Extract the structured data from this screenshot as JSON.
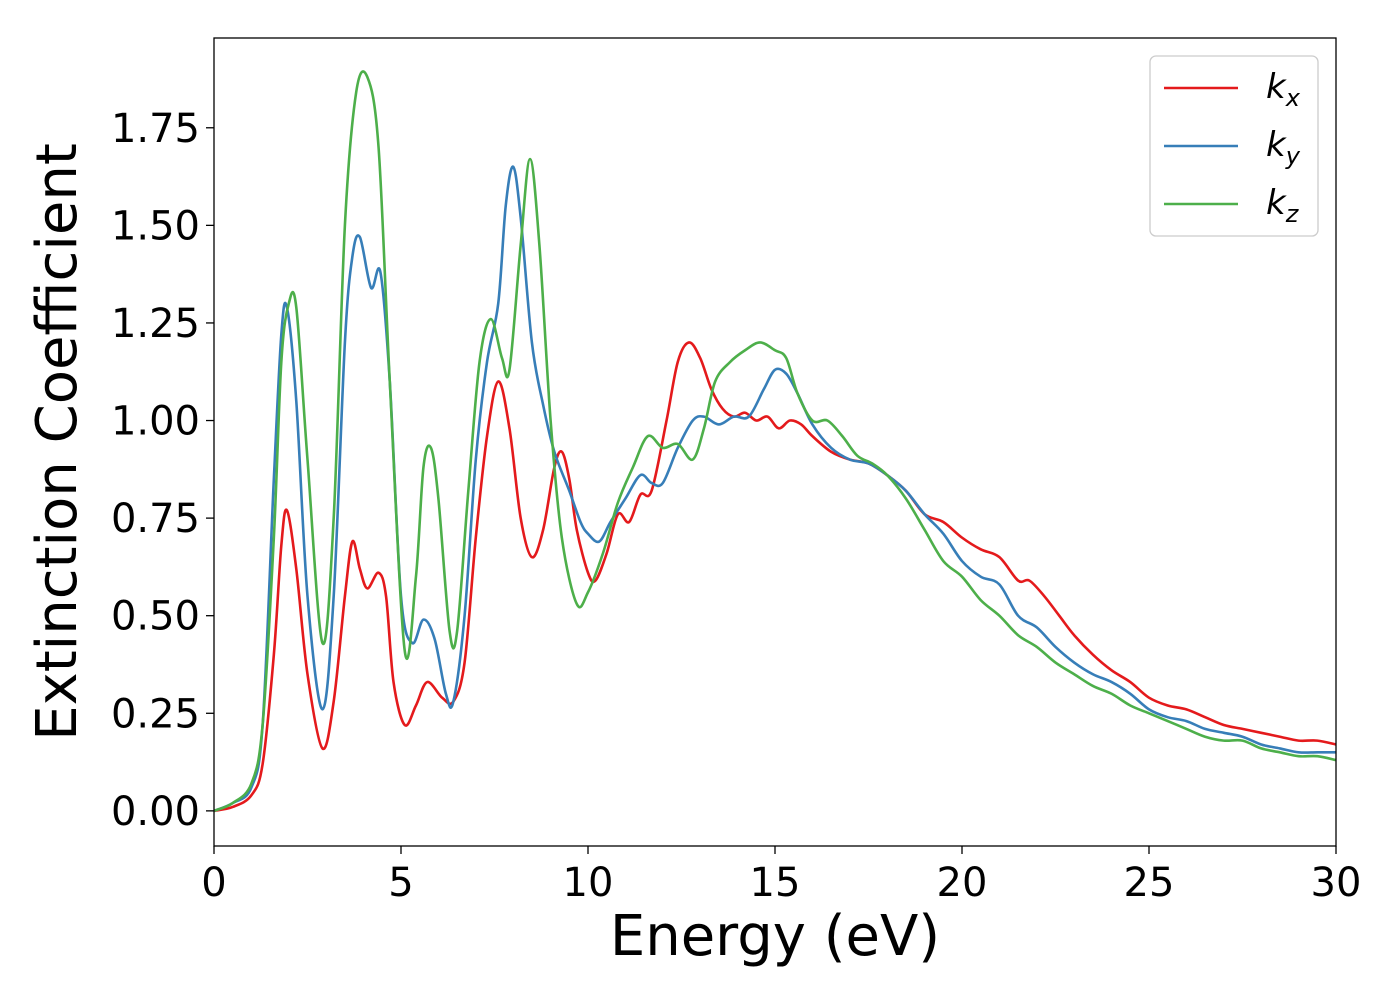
{
  "chart_data": {
    "type": "line",
    "title": "",
    "xlabel": "Energy (eV)",
    "ylabel": "Extinction Coefficient",
    "xlim": [
      0,
      30
    ],
    "ylim": [
      -0.09,
      1.98
    ],
    "xticks": [
      0,
      5,
      10,
      15,
      20,
      25,
      30
    ],
    "xtick_labels": [
      "0",
      "5",
      "10",
      "15",
      "20",
      "25",
      "30"
    ],
    "yticks": [
      0.0,
      0.25,
      0.5,
      0.75,
      1.0,
      1.25,
      1.5,
      1.75
    ],
    "ytick_labels": [
      "0.00",
      "0.25",
      "0.50",
      "0.75",
      "1.00",
      "1.25",
      "1.50",
      "1.75"
    ],
    "grid": false,
    "legend_position": "top-right",
    "series": [
      {
        "name": "k_x",
        "label_main": "k",
        "label_sub": "x",
        "color": "#e41a1c",
        "points": [
          [
            0,
            0
          ],
          [
            0.5,
            0.01
          ],
          [
            1,
            0.04
          ],
          [
            1.3,
            0.12
          ],
          [
            1.6,
            0.4
          ],
          [
            1.8,
            0.68
          ],
          [
            1.95,
            0.77
          ],
          [
            2.2,
            0.62
          ],
          [
            2.5,
            0.35
          ],
          [
            2.9,
            0.16
          ],
          [
            3.2,
            0.28
          ],
          [
            3.5,
            0.55
          ],
          [
            3.7,
            0.69
          ],
          [
            3.9,
            0.62
          ],
          [
            4.1,
            0.57
          ],
          [
            4.4,
            0.61
          ],
          [
            4.6,
            0.55
          ],
          [
            4.8,
            0.33
          ],
          [
            5.1,
            0.22
          ],
          [
            5.4,
            0.27
          ],
          [
            5.7,
            0.33
          ],
          [
            6.1,
            0.29
          ],
          [
            6.4,
            0.28
          ],
          [
            6.7,
            0.38
          ],
          [
            7.0,
            0.7
          ],
          [
            7.3,
            0.96
          ],
          [
            7.6,
            1.1
          ],
          [
            7.9,
            0.98
          ],
          [
            8.2,
            0.75
          ],
          [
            8.5,
            0.65
          ],
          [
            8.8,
            0.72
          ],
          [
            9.1,
            0.88
          ],
          [
            9.3,
            0.92
          ],
          [
            9.5,
            0.85
          ],
          [
            9.7,
            0.72
          ],
          [
            10.0,
            0.61
          ],
          [
            10.2,
            0.59
          ],
          [
            10.5,
            0.66
          ],
          [
            10.8,
            0.76
          ],
          [
            11.1,
            0.74
          ],
          [
            11.4,
            0.81
          ],
          [
            11.7,
            0.82
          ],
          [
            12.1,
            1.0
          ],
          [
            12.4,
            1.15
          ],
          [
            12.7,
            1.2
          ],
          [
            13.0,
            1.16
          ],
          [
            13.3,
            1.08
          ],
          [
            13.6,
            1.03
          ],
          [
            13.9,
            1.01
          ],
          [
            14.2,
            1.02
          ],
          [
            14.5,
            1.0
          ],
          [
            14.8,
            1.01
          ],
          [
            15.1,
            0.98
          ],
          [
            15.4,
            1.0
          ],
          [
            15.7,
            0.99
          ],
          [
            16.0,
            0.96
          ],
          [
            16.5,
            0.92
          ],
          [
            17.0,
            0.9
          ],
          [
            17.5,
            0.89
          ],
          [
            18.0,
            0.86
          ],
          [
            18.5,
            0.82
          ],
          [
            19.0,
            0.76
          ],
          [
            19.5,
            0.74
          ],
          [
            20.0,
            0.7
          ],
          [
            20.5,
            0.67
          ],
          [
            21.0,
            0.65
          ],
          [
            21.5,
            0.59
          ],
          [
            21.8,
            0.59
          ],
          [
            22.2,
            0.55
          ],
          [
            22.6,
            0.5
          ],
          [
            23.0,
            0.45
          ],
          [
            23.5,
            0.4
          ],
          [
            24.0,
            0.36
          ],
          [
            24.5,
            0.33
          ],
          [
            25.0,
            0.29
          ],
          [
            25.5,
            0.27
          ],
          [
            26.0,
            0.26
          ],
          [
            26.5,
            0.24
          ],
          [
            27.0,
            0.22
          ],
          [
            27.5,
            0.21
          ],
          [
            28.0,
            0.2
          ],
          [
            28.5,
            0.19
          ],
          [
            29.0,
            0.18
          ],
          [
            29.5,
            0.18
          ],
          [
            30.0,
            0.17
          ]
        ]
      },
      {
        "name": "k_y",
        "label_main": "k",
        "label_sub": "y",
        "color": "#377eb8",
        "points": [
          [
            0,
            0
          ],
          [
            0.5,
            0.02
          ],
          [
            1,
            0.06
          ],
          [
            1.3,
            0.22
          ],
          [
            1.6,
            0.85
          ],
          [
            1.8,
            1.22
          ],
          [
            1.95,
            1.29
          ],
          [
            2.2,
            1.05
          ],
          [
            2.5,
            0.55
          ],
          [
            2.9,
            0.26
          ],
          [
            3.2,
            0.55
          ],
          [
            3.5,
            1.2
          ],
          [
            3.7,
            1.42
          ],
          [
            3.9,
            1.47
          ],
          [
            4.2,
            1.34
          ],
          [
            4.45,
            1.38
          ],
          [
            4.7,
            1.1
          ],
          [
            5.0,
            0.55
          ],
          [
            5.3,
            0.43
          ],
          [
            5.6,
            0.49
          ],
          [
            5.9,
            0.44
          ],
          [
            6.2,
            0.3
          ],
          [
            6.4,
            0.28
          ],
          [
            6.7,
            0.5
          ],
          [
            7.0,
            0.9
          ],
          [
            7.3,
            1.15
          ],
          [
            7.6,
            1.3
          ],
          [
            7.8,
            1.55
          ],
          [
            8.0,
            1.65
          ],
          [
            8.2,
            1.52
          ],
          [
            8.5,
            1.2
          ],
          [
            8.8,
            1.04
          ],
          [
            9.1,
            0.92
          ],
          [
            9.5,
            0.82
          ],
          [
            9.8,
            0.74
          ],
          [
            10.0,
            0.71
          ],
          [
            10.3,
            0.69
          ],
          [
            10.6,
            0.74
          ],
          [
            11.0,
            0.8
          ],
          [
            11.4,
            0.86
          ],
          [
            11.7,
            0.84
          ],
          [
            12.0,
            0.84
          ],
          [
            12.4,
            0.93
          ],
          [
            12.8,
            1.0
          ],
          [
            13.1,
            1.01
          ],
          [
            13.5,
            0.99
          ],
          [
            13.9,
            1.01
          ],
          [
            14.3,
            1.01
          ],
          [
            14.7,
            1.08
          ],
          [
            15.0,
            1.13
          ],
          [
            15.3,
            1.12
          ],
          [
            15.6,
            1.07
          ],
          [
            16.0,
            0.99
          ],
          [
            16.5,
            0.93
          ],
          [
            17.0,
            0.9
          ],
          [
            17.5,
            0.89
          ],
          [
            18.0,
            0.86
          ],
          [
            18.5,
            0.82
          ],
          [
            19.0,
            0.76
          ],
          [
            19.5,
            0.71
          ],
          [
            20.0,
            0.64
          ],
          [
            20.5,
            0.6
          ],
          [
            21.0,
            0.58
          ],
          [
            21.5,
            0.5
          ],
          [
            22.0,
            0.47
          ],
          [
            22.5,
            0.42
          ],
          [
            23.0,
            0.38
          ],
          [
            23.5,
            0.35
          ],
          [
            24.0,
            0.33
          ],
          [
            24.5,
            0.3
          ],
          [
            25.0,
            0.26
          ],
          [
            25.5,
            0.24
          ],
          [
            26.0,
            0.23
          ],
          [
            26.5,
            0.21
          ],
          [
            27.0,
            0.2
          ],
          [
            27.5,
            0.19
          ],
          [
            28.0,
            0.17
          ],
          [
            28.5,
            0.16
          ],
          [
            29.0,
            0.15
          ],
          [
            29.5,
            0.15
          ],
          [
            30.0,
            0.15
          ]
        ]
      },
      {
        "name": "k_z",
        "label_main": "k",
        "label_sub": "z",
        "color": "#4daf4a",
        "points": [
          [
            0,
            0
          ],
          [
            0.5,
            0.02
          ],
          [
            1,
            0.07
          ],
          [
            1.3,
            0.22
          ],
          [
            1.6,
            0.7
          ],
          [
            1.8,
            1.15
          ],
          [
            2.0,
            1.3
          ],
          [
            2.2,
            1.29
          ],
          [
            2.5,
            0.9
          ],
          [
            2.9,
            0.43
          ],
          [
            3.2,
            0.75
          ],
          [
            3.5,
            1.5
          ],
          [
            3.8,
            1.84
          ],
          [
            4.1,
            1.88
          ],
          [
            4.4,
            1.7
          ],
          [
            4.7,
            1.1
          ],
          [
            5.1,
            0.41
          ],
          [
            5.4,
            0.6
          ],
          [
            5.6,
            0.88
          ],
          [
            5.8,
            0.93
          ],
          [
            6.0,
            0.8
          ],
          [
            6.3,
            0.46
          ],
          [
            6.5,
            0.46
          ],
          [
            6.8,
            0.82
          ],
          [
            7.1,
            1.15
          ],
          [
            7.4,
            1.26
          ],
          [
            7.7,
            1.16
          ],
          [
            7.9,
            1.13
          ],
          [
            8.2,
            1.45
          ],
          [
            8.45,
            1.67
          ],
          [
            8.7,
            1.45
          ],
          [
            9.0,
            1.0
          ],
          [
            9.3,
            0.7
          ],
          [
            9.7,
            0.53
          ],
          [
            10.0,
            0.56
          ],
          [
            10.4,
            0.66
          ],
          [
            10.8,
            0.79
          ],
          [
            11.2,
            0.88
          ],
          [
            11.6,
            0.96
          ],
          [
            12.0,
            0.93
          ],
          [
            12.4,
            0.94
          ],
          [
            12.8,
            0.9
          ],
          [
            13.1,
            0.98
          ],
          [
            13.4,
            1.1
          ],
          [
            13.8,
            1.15
          ],
          [
            14.2,
            1.18
          ],
          [
            14.6,
            1.2
          ],
          [
            15.0,
            1.18
          ],
          [
            15.3,
            1.16
          ],
          [
            15.6,
            1.07
          ],
          [
            16.0,
            1.0
          ],
          [
            16.4,
            1.0
          ],
          [
            16.8,
            0.96
          ],
          [
            17.2,
            0.91
          ],
          [
            17.6,
            0.89
          ],
          [
            18.0,
            0.86
          ],
          [
            18.5,
            0.8
          ],
          [
            19.0,
            0.72
          ],
          [
            19.5,
            0.64
          ],
          [
            20.0,
            0.6
          ],
          [
            20.5,
            0.54
          ],
          [
            21.0,
            0.5
          ],
          [
            21.5,
            0.45
          ],
          [
            22.0,
            0.42
          ],
          [
            22.5,
            0.38
          ],
          [
            23.0,
            0.35
          ],
          [
            23.5,
            0.32
          ],
          [
            24.0,
            0.3
          ],
          [
            24.5,
            0.27
          ],
          [
            25.0,
            0.25
          ],
          [
            25.5,
            0.23
          ],
          [
            26.0,
            0.21
          ],
          [
            26.5,
            0.19
          ],
          [
            27.0,
            0.18
          ],
          [
            27.5,
            0.18
          ],
          [
            28.0,
            0.16
          ],
          [
            28.5,
            0.15
          ],
          [
            29.0,
            0.14
          ],
          [
            29.5,
            0.14
          ],
          [
            30.0,
            0.13
          ]
        ]
      }
    ]
  }
}
